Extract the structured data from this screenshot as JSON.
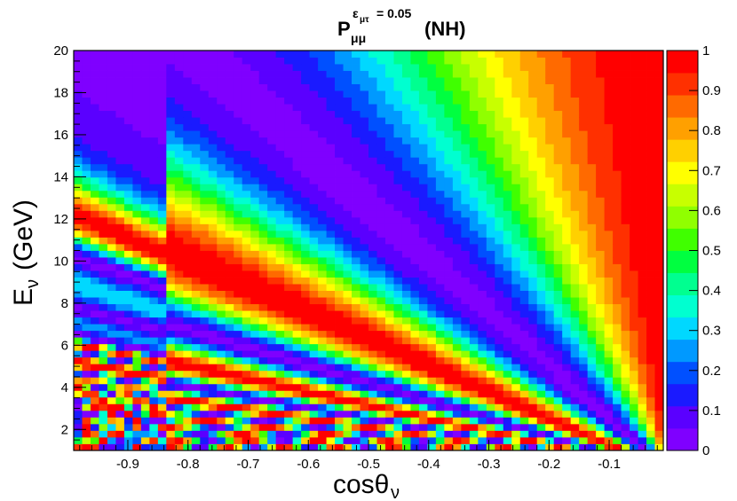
{
  "chart_data": {
    "type": "heatmap",
    "title": {
      "main": "P",
      "subscript": "μμ",
      "superscript": "ε",
      "superscript_sub": "μτ",
      "superscript_value": "= 0.05",
      "suffix": "(NH)"
    },
    "xlabel": {
      "main": "cosθ",
      "subscript": "ν"
    },
    "ylabel": {
      "main": "E",
      "subscript": "ν",
      "suffix": "(GeV)"
    },
    "xlim": [
      -0.99,
      -0.01
    ],
    "ylim": [
      1,
      20
    ],
    "zlim": [
      0,
      1
    ],
    "x_ticks": [
      "-0.9",
      "-0.8",
      "-0.7",
      "-0.6",
      "-0.5",
      "-0.4",
      "-0.3",
      "-0.2",
      "-0.1"
    ],
    "x_tick_values": [
      -0.9,
      -0.8,
      -0.7,
      -0.6,
      -0.5,
      -0.4,
      -0.3,
      -0.2,
      -0.1
    ],
    "y_ticks": [
      "2",
      "4",
      "6",
      "8",
      "10",
      "12",
      "14",
      "16",
      "18",
      "20"
    ],
    "y_tick_values": [
      2,
      4,
      6,
      8,
      10,
      12,
      14,
      16,
      18,
      20
    ],
    "z_ticks": [
      "0",
      "0.1",
      "0.2",
      "0.3",
      "0.4",
      "0.5",
      "0.6",
      "0.7",
      "0.8",
      "0.9",
      "1"
    ],
    "z_tick_values": [
      0,
      0.1,
      0.2,
      0.3,
      0.4,
      0.5,
      0.6,
      0.7,
      0.8,
      0.9,
      1
    ],
    "palette": [
      "#7f00ff",
      "#5a00ff",
      "#1a1aff",
      "#0050ff",
      "#0099ff",
      "#00d8ff",
      "#00ffd0",
      "#00ff90",
      "#00ff40",
      "#40ff00",
      "#90ff00",
      "#c8ff00",
      "#ffff00",
      "#ffd000",
      "#ffa000",
      "#ff6a00",
      "#ff3000",
      "#ff0000"
    ],
    "bins": {
      "x": 70,
      "y": 60
    },
    "grid": false,
    "legend": "right colorbar"
  }
}
